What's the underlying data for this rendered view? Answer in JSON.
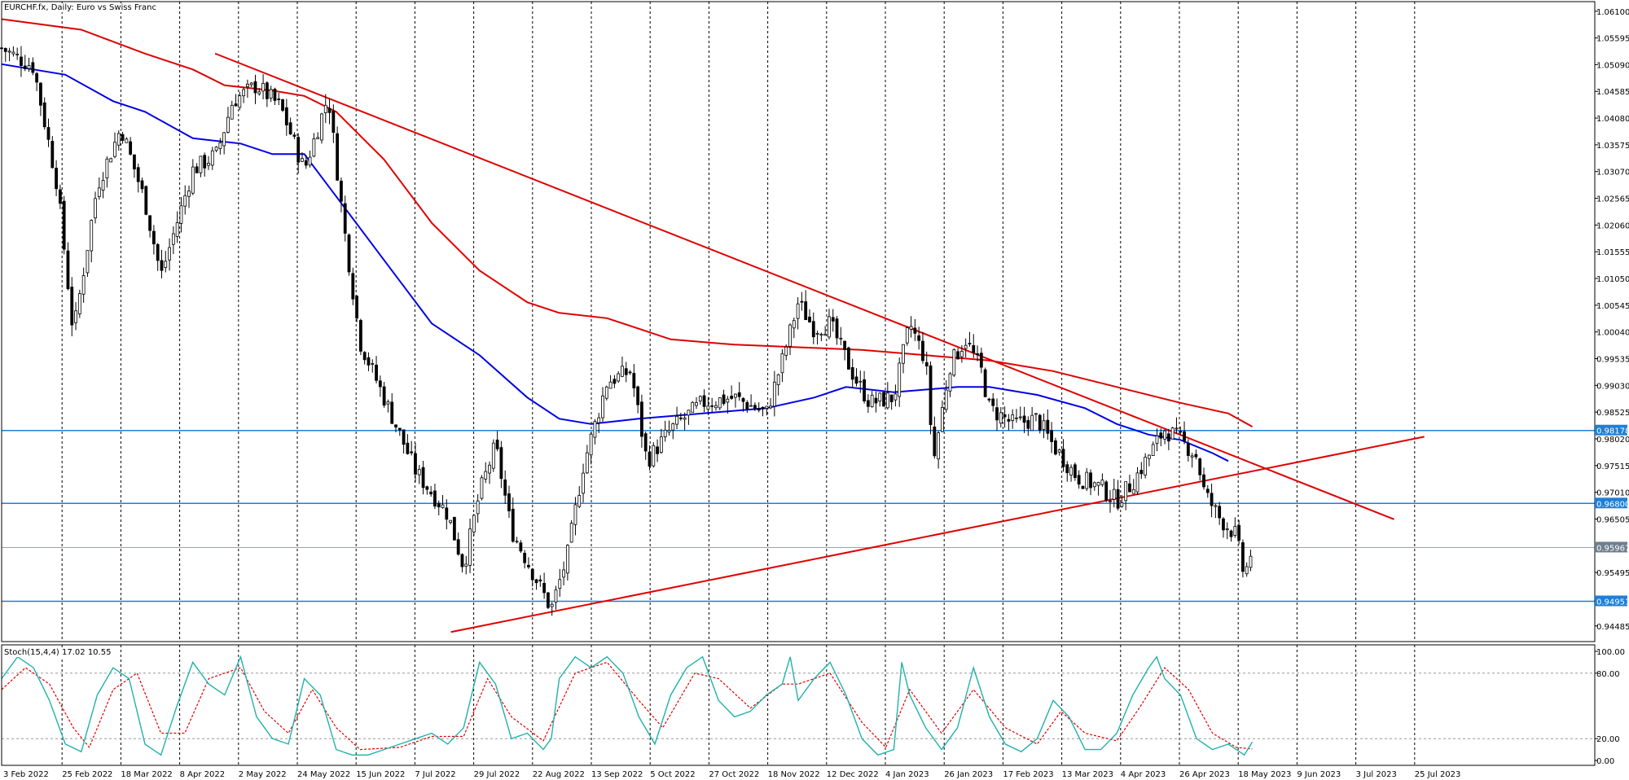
{
  "window": {
    "title": "EURCHF.fx, Daily:  Euro vs Swiss Franc"
  },
  "colors": {
    "background": "#ffffff",
    "grid": "#000000",
    "candle": "#000000",
    "ma_red": "#e00000",
    "ma_blue": "#0000e8",
    "trendline": "#e00000",
    "hline": "#1e7fd8",
    "stoch_main": "#20b2aa",
    "stoch_signal": "#e00000",
    "price_tag_blue": "#1e7fd8",
    "price_tag_current": "#6e7f8d"
  },
  "price_axis": {
    "ticks": [
      "1.06100",
      "1.05595",
      "1.05090",
      "1.04585",
      "1.04080",
      "1.03575",
      "1.03070",
      "1.02565",
      "1.02060",
      "1.01555",
      "1.01050",
      "1.00545",
      "1.00040",
      "0.99535",
      "0.99030",
      "0.98525",
      "0.98020",
      "0.97515",
      "0.97010",
      "0.96505",
      "0.95495",
      "0.94485"
    ],
    "levels": [
      {
        "label": "0.98178",
        "type": "horizontal-line"
      },
      {
        "label": "0.96800",
        "type": "horizontal-line"
      },
      {
        "label": "0.94951",
        "type": "horizontal-line"
      }
    ],
    "current": {
      "label": "0.95967"
    }
  },
  "time_axis": {
    "labels": [
      "3 Feb 2022",
      "25 Feb 2022",
      "18 Mar 2022",
      "8 Apr 2022",
      "2 May 2022",
      "24 May 2022",
      "15 Jun 2022",
      "7 Jul 2022",
      "29 Jul 2022",
      "22 Aug 2022",
      "13 Sep 2022",
      "5 Oct 2022",
      "27 Oct 2022",
      "18 Nov 2022",
      "12 Dec 2022",
      "4 Jan 2023",
      "26 Jan 2023",
      "17 Feb 2023",
      "13 Mar 2023",
      "4 Apr 2023",
      "26 Apr 2023",
      "18 May 2023",
      "9 Jun 2023",
      "3 Jul 2023",
      "25 Jul 2023"
    ]
  },
  "stochastic": {
    "title": "Stoch(15,4,4) 17.02 10.55",
    "ticks": [
      "100.00",
      "80.00",
      "20.00",
      "0.00"
    ],
    "levels": [
      80,
      20
    ]
  },
  "chart_data": {
    "type": "candlestick",
    "title": "EURCHF.fx, Daily:  Euro vs Swiss Franc",
    "ylim": [
      0.9422,
      1.0625
    ],
    "close_path": [
      [
        0,
        1.054
      ],
      [
        0.02,
        1.0505
      ],
      [
        0.035,
        1.028
      ],
      [
        0.045,
        1.0
      ],
      [
        0.06,
        1.028
      ],
      [
        0.075,
        1.039
      ],
      [
        0.09,
        1.025
      ],
      [
        0.1,
        1.011
      ],
      [
        0.12,
        1.031
      ],
      [
        0.135,
        1.034
      ],
      [
        0.145,
        1.044
      ],
      [
        0.16,
        1.047
      ],
      [
        0.175,
        1.043
      ],
      [
        0.19,
        1.031
      ],
      [
        0.205,
        1.045
      ],
      [
        0.215,
        1.02
      ],
      [
        0.225,
        0.9985
      ],
      [
        0.24,
        0.988
      ],
      [
        0.26,
        0.974
      ],
      [
        0.28,
        0.966
      ],
      [
        0.29,
        0.956
      ],
      [
        0.3,
        0.97
      ],
      [
        0.31,
        0.979
      ],
      [
        0.32,
        0.963
      ],
      [
        0.335,
        0.954
      ],
      [
        0.345,
        0.948
      ],
      [
        0.355,
        0.958
      ],
      [
        0.365,
        0.975
      ],
      [
        0.38,
        0.991
      ],
      [
        0.395,
        0.993
      ],
      [
        0.405,
        0.976
      ],
      [
        0.42,
        0.982
      ],
      [
        0.44,
        0.987
      ],
      [
        0.46,
        0.988
      ],
      [
        0.48,
        0.985
      ],
      [
        0.49,
        0.995
      ],
      [
        0.5,
        1.006
      ],
      [
        0.51,
        1.001
      ],
      [
        0.52,
        1.002
      ],
      [
        0.535,
        0.992
      ],
      [
        0.545,
        0.987
      ],
      [
        0.56,
        0.988
      ],
      [
        0.57,
        1.002
      ],
      [
        0.58,
        0.995
      ],
      [
        0.585,
        0.976
      ],
      [
        0.595,
        0.994
      ],
      [
        0.605,
        0.999
      ],
      [
        0.615,
        0.993
      ],
      [
        0.62,
        0.986
      ],
      [
        0.635,
        0.983
      ],
      [
        0.65,
        0.984
      ],
      [
        0.66,
        0.979
      ],
      [
        0.675,
        0.973
      ],
      [
        0.69,
        0.971
      ],
      [
        0.7,
        0.9685
      ],
      [
        0.71,
        0.972
      ],
      [
        0.72,
        0.977
      ],
      [
        0.73,
        0.982
      ],
      [
        0.74,
        0.98
      ],
      [
        0.75,
        0.977
      ],
      [
        0.755,
        0.97
      ],
      [
        0.765,
        0.965
      ],
      [
        0.775,
        0.962
      ],
      [
        0.78,
        0.954
      ],
      [
        0.785,
        0.9597
      ]
    ],
    "moving_averages": [
      {
        "color": "red",
        "points": [
          [
            0,
            1.0595
          ],
          [
            0.05,
            1.0575
          ],
          [
            0.09,
            1.053
          ],
          [
            0.12,
            1.05
          ],
          [
            0.14,
            1.047
          ],
          [
            0.17,
            1.046
          ],
          [
            0.19,
            1.045
          ],
          [
            0.21,
            1.042
          ],
          [
            0.24,
            1.033
          ],
          [
            0.27,
            1.021
          ],
          [
            0.3,
            1.012
          ],
          [
            0.33,
            1.006
          ],
          [
            0.35,
            1.004
          ],
          [
            0.38,
            1.003
          ],
          [
            0.42,
            0.999
          ],
          [
            0.46,
            0.998
          ],
          [
            0.5,
            0.9975
          ],
          [
            0.54,
            0.997
          ],
          [
            0.58,
            0.996
          ],
          [
            0.62,
            0.995
          ],
          [
            0.66,
            0.993
          ],
          [
            0.7,
            0.99
          ],
          [
            0.74,
            0.987
          ],
          [
            0.77,
            0.985
          ],
          [
            0.785,
            0.9825
          ]
        ]
      },
      {
        "color": "blue",
        "points": [
          [
            0,
            1.051
          ],
          [
            0.04,
            1.049
          ],
          [
            0.07,
            1.044
          ],
          [
            0.09,
            1.042
          ],
          [
            0.12,
            1.037
          ],
          [
            0.15,
            1.036
          ],
          [
            0.17,
            1.034
          ],
          [
            0.19,
            1.034
          ],
          [
            0.21,
            1.026
          ],
          [
            0.24,
            1.014
          ],
          [
            0.27,
            1.002
          ],
          [
            0.3,
            0.996
          ],
          [
            0.33,
            0.988
          ],
          [
            0.35,
            0.984
          ],
          [
            0.37,
            0.983
          ],
          [
            0.4,
            0.984
          ],
          [
            0.44,
            0.985
          ],
          [
            0.48,
            0.986
          ],
          [
            0.51,
            0.988
          ],
          [
            0.53,
            0.99
          ],
          [
            0.56,
            0.989
          ],
          [
            0.6,
            0.99
          ],
          [
            0.62,
            0.99
          ],
          [
            0.65,
            0.9885
          ],
          [
            0.68,
            0.986
          ],
          [
            0.7,
            0.983
          ],
          [
            0.72,
            0.981
          ],
          [
            0.74,
            0.98
          ],
          [
            0.76,
            0.9775
          ],
          [
            0.77,
            0.976
          ]
        ]
      }
    ],
    "trendlines": [
      {
        "points": [
          [
            0.134,
            1.053
          ],
          [
            0.874,
            0.965
          ]
        ]
      },
      {
        "points": [
          [
            0.282,
            0.9437
          ],
          [
            0.893,
            0.9806
          ]
        ]
      }
    ],
    "stoch_main": [
      [
        0,
        75
      ],
      [
        0.01,
        95
      ],
      [
        0.02,
        85
      ],
      [
        0.03,
        55
      ],
      [
        0.04,
        15
      ],
      [
        0.05,
        8
      ],
      [
        0.06,
        60
      ],
      [
        0.07,
        85
      ],
      [
        0.08,
        75
      ],
      [
        0.09,
        15
      ],
      [
        0.1,
        5
      ],
      [
        0.11,
        50
      ],
      [
        0.12,
        90
      ],
      [
        0.13,
        70
      ],
      [
        0.14,
        60
      ],
      [
        0.15,
        95
      ],
      [
        0.16,
        40
      ],
      [
        0.17,
        20
      ],
      [
        0.18,
        15
      ],
      [
        0.19,
        75
      ],
      [
        0.2,
        60
      ],
      [
        0.21,
        10
      ],
      [
        0.22,
        5
      ],
      [
        0.23,
        5
      ],
      [
        0.24,
        10
      ],
      [
        0.25,
        15
      ],
      [
        0.26,
        20
      ],
      [
        0.27,
        25
      ],
      [
        0.28,
        15
      ],
      [
        0.29,
        30
      ],
      [
        0.3,
        90
      ],
      [
        0.31,
        70
      ],
      [
        0.32,
        20
      ],
      [
        0.33,
        25
      ],
      [
        0.34,
        10
      ],
      [
        0.345,
        20
      ],
      [
        0.35,
        75
      ],
      [
        0.36,
        95
      ],
      [
        0.37,
        85
      ],
      [
        0.38,
        95
      ],
      [
        0.39,
        80
      ],
      [
        0.4,
        40
      ],
      [
        0.41,
        15
      ],
      [
        0.42,
        60
      ],
      [
        0.43,
        85
      ],
      [
        0.44,
        95
      ],
      [
        0.45,
        55
      ],
      [
        0.46,
        40
      ],
      [
        0.47,
        45
      ],
      [
        0.48,
        60
      ],
      [
        0.49,
        70
      ],
      [
        0.495,
        95
      ],
      [
        0.5,
        55
      ],
      [
        0.51,
        75
      ],
      [
        0.52,
        90
      ],
      [
        0.53,
        60
      ],
      [
        0.54,
        20
      ],
      [
        0.55,
        5
      ],
      [
        0.56,
        10
      ],
      [
        0.565,
        90
      ],
      [
        0.57,
        60
      ],
      [
        0.58,
        30
      ],
      [
        0.59,
        10
      ],
      [
        0.6,
        30
      ],
      [
        0.61,
        85
      ],
      [
        0.62,
        40
      ],
      [
        0.63,
        15
      ],
      [
        0.64,
        8
      ],
      [
        0.65,
        20
      ],
      [
        0.66,
        55
      ],
      [
        0.67,
        40
      ],
      [
        0.68,
        10
      ],
      [
        0.69,
        10
      ],
      [
        0.7,
        25
      ],
      [
        0.71,
        60
      ],
      [
        0.72,
        85
      ],
      [
        0.725,
        95
      ],
      [
        0.73,
        75
      ],
      [
        0.74,
        60
      ],
      [
        0.75,
        20
      ],
      [
        0.76,
        10
      ],
      [
        0.77,
        15
      ],
      [
        0.78,
        5
      ],
      [
        0.785,
        17
      ]
    ],
    "stoch_signal": [
      [
        0,
        65
      ],
      [
        0.015,
        85
      ],
      [
        0.03,
        70
      ],
      [
        0.045,
        30
      ],
      [
        0.055,
        12
      ],
      [
        0.07,
        65
      ],
      [
        0.085,
        80
      ],
      [
        0.1,
        25
      ],
      [
        0.115,
        25
      ],
      [
        0.13,
        75
      ],
      [
        0.15,
        85
      ],
      [
        0.165,
        45
      ],
      [
        0.18,
        25
      ],
      [
        0.195,
        65
      ],
      [
        0.21,
        30
      ],
      [
        0.225,
        10
      ],
      [
        0.25,
        12
      ],
      [
        0.27,
        22
      ],
      [
        0.29,
        22
      ],
      [
        0.305,
        75
      ],
      [
        0.32,
        40
      ],
      [
        0.34,
        18
      ],
      [
        0.36,
        80
      ],
      [
        0.38,
        90
      ],
      [
        0.4,
        55
      ],
      [
        0.415,
        30
      ],
      [
        0.435,
        80
      ],
      [
        0.45,
        75
      ],
      [
        0.47,
        48
      ],
      [
        0.49,
        70
      ],
      [
        0.5,
        70
      ],
      [
        0.52,
        80
      ],
      [
        0.54,
        35
      ],
      [
        0.555,
        12
      ],
      [
        0.57,
        65
      ],
      [
        0.59,
        25
      ],
      [
        0.61,
        65
      ],
      [
        0.63,
        30
      ],
      [
        0.65,
        15
      ],
      [
        0.665,
        45
      ],
      [
        0.68,
        25
      ],
      [
        0.7,
        18
      ],
      [
        0.715,
        50
      ],
      [
        0.73,
        85
      ],
      [
        0.745,
        65
      ],
      [
        0.76,
        25
      ],
      [
        0.775,
        12
      ],
      [
        0.785,
        10.55
      ]
    ]
  }
}
